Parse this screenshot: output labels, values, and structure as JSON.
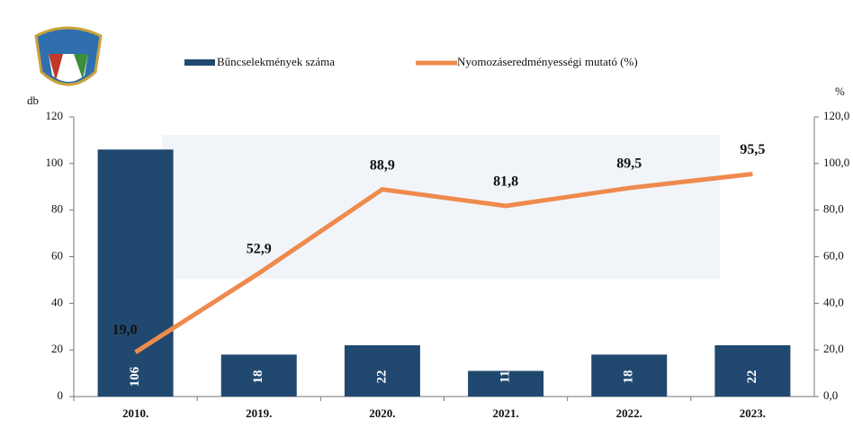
{
  "chart_data": {
    "type": "bar",
    "categories": [
      "2010.",
      "2019.",
      "2020.",
      "2021.",
      "2022.",
      "2023."
    ],
    "series": [
      {
        "name": "Bűncselekmények száma",
        "color": "#21496f",
        "values": [
          106,
          18,
          22,
          11,
          18,
          22
        ]
      },
      {
        "name": "Nyomozáseredményességi mutató (%)",
        "color": "#ef8a4d",
        "type": "line",
        "axis": "y2",
        "values": [
          19.0,
          52.9,
          88.9,
          81.8,
          89.5,
          95.5
        ],
        "value_labels": [
          "19,0",
          "52,9",
          "88,9",
          "81,8",
          "89,5",
          "95,5"
        ]
      }
    ],
    "y_label": "db",
    "y2_label": "%",
    "ylim": [
      0,
      120
    ],
    "yticks": [
      0,
      20,
      40,
      60,
      80,
      100,
      120
    ],
    "y2lim": [
      0,
      120
    ],
    "y2ticks": [
      {
        "value": 0,
        "label": "0,0"
      },
      {
        "value": 20,
        "label": "20,0"
      },
      {
        "value": 40,
        "label": "40,0"
      },
      {
        "value": 60,
        "label": "60,0"
      },
      {
        "value": 80,
        "label": "80,0"
      },
      {
        "value": 100,
        "label": "100,0"
      },
      {
        "value": 120,
        "label": "120,0"
      }
    ]
  }
}
